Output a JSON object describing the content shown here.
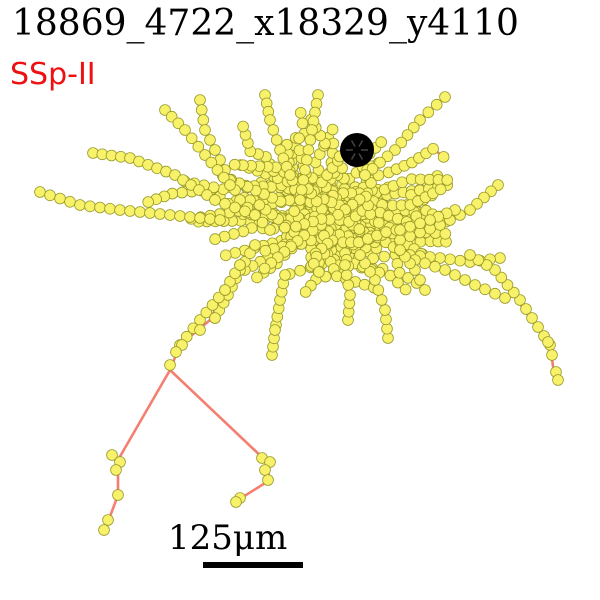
{
  "figure": {
    "title": "18869_4722_x18329_y4110",
    "region_label": "SSp-II",
    "region_label_color": "#ee1111",
    "scale_label": "125μm",
    "neurite_color": "#f47f70",
    "node_fill_color": "#f7f26a",
    "node_edge_color": "#9a9a2a",
    "soma_color": "#000000"
  }
}
